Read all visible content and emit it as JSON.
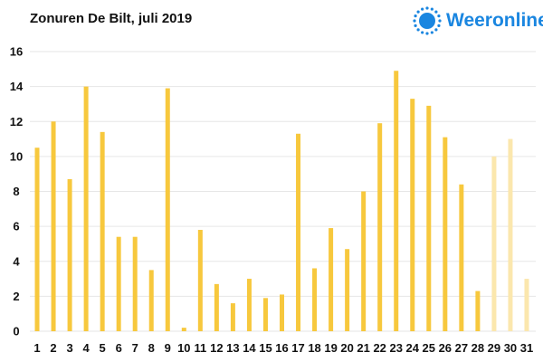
{
  "brand": {
    "name": "Weeronline",
    "icon": "sun-logo-icon",
    "color": "#1a86e0"
  },
  "chart_data": {
    "type": "bar",
    "title": "Zonuren De Bilt, juli 2019",
    "xlabel": "",
    "ylabel": "",
    "ylim": [
      0,
      16
    ],
    "yticks": [
      0,
      2,
      4,
      6,
      8,
      10,
      12,
      14,
      16
    ],
    "grid": true,
    "legend": "none",
    "categories": [
      "1",
      "2",
      "3",
      "4",
      "5",
      "6",
      "7",
      "8",
      "9",
      "10",
      "11",
      "12",
      "13",
      "14",
      "15",
      "16",
      "17",
      "18",
      "19",
      "20",
      "21",
      "22",
      "23",
      "24",
      "25",
      "26",
      "27",
      "28",
      "29",
      "30",
      "31"
    ],
    "values": [
      10.5,
      12.0,
      8.7,
      14.0,
      11.4,
      5.4,
      5.4,
      3.5,
      13.9,
      0.2,
      5.8,
      2.7,
      1.6,
      3.0,
      1.9,
      2.1,
      11.3,
      3.6,
      5.9,
      4.7,
      8.0,
      11.9,
      14.9,
      13.3,
      12.9,
      11.1,
      8.4,
      2.3,
      10.0,
      11.0,
      3.0
    ],
    "bar_status": [
      "measured",
      "measured",
      "measured",
      "measured",
      "measured",
      "measured",
      "measured",
      "measured",
      "measured",
      "measured",
      "measured",
      "measured",
      "measured",
      "measured",
      "measured",
      "measured",
      "measured",
      "measured",
      "measured",
      "measured",
      "measured",
      "measured",
      "measured",
      "measured",
      "measured",
      "measured",
      "measured",
      "measured",
      "faded",
      "faded",
      "faded"
    ],
    "colors": {
      "measured": "#f7c83d",
      "faded": "#fbe7ad",
      "grid": "#e6e6e6"
    }
  }
}
